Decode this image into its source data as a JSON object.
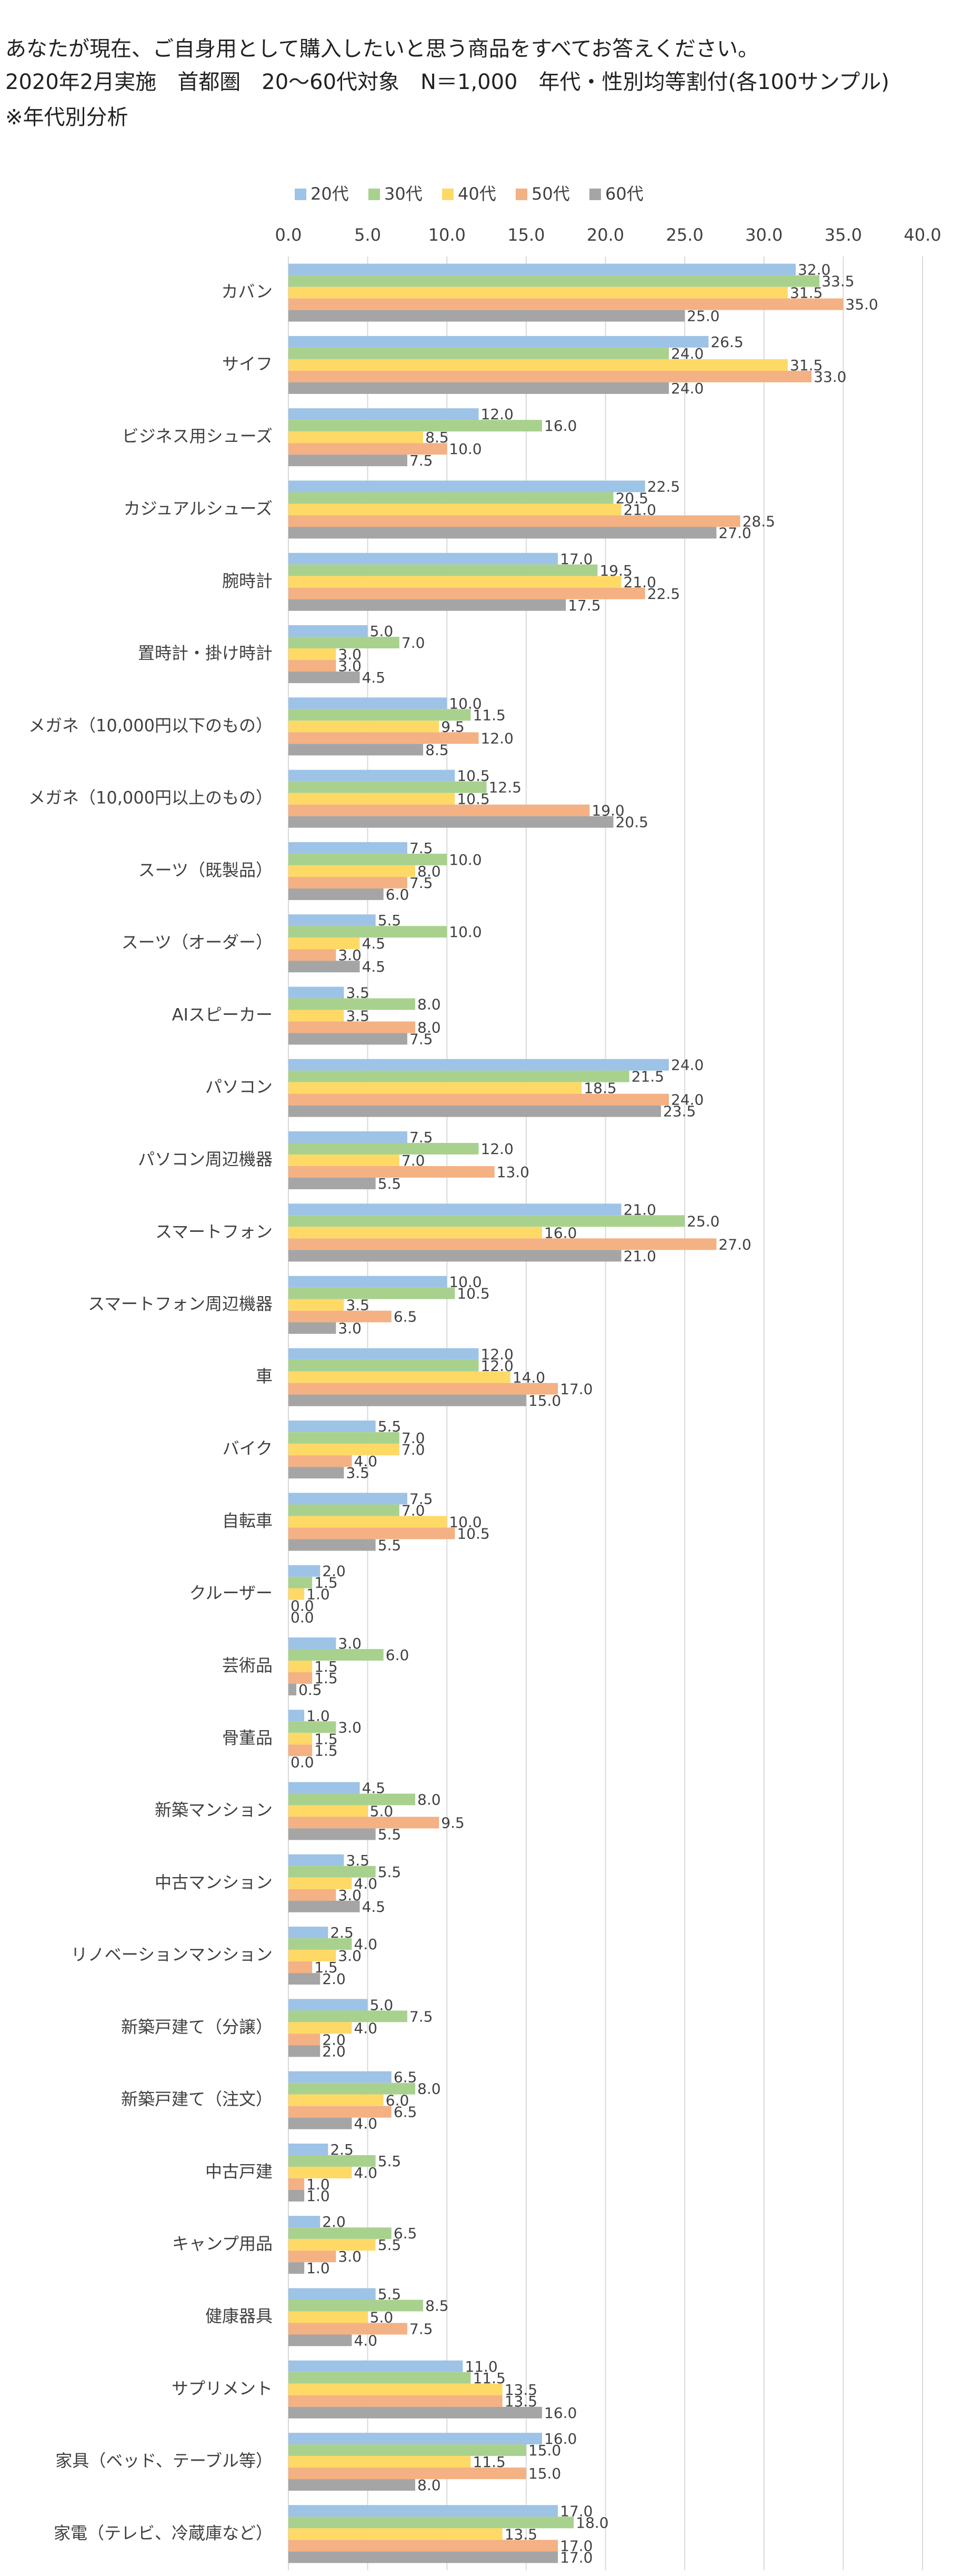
{
  "chart_data": {
    "type": "hbar",
    "title": "あなたが現在、ご自身用として購入したいと思う商品をすべてお答えください。",
    "subtitle": "2020年2月実施　首都圏　20〜60代対象　N＝1,000　年代・性別均等割付(各100サンプル)",
    "note": "※年代別分析",
    "categories": [
      "カバン",
      "サイフ",
      "ビジネス用シューズ",
      "カジュアルシューズ",
      "腕時計",
      "置時計・掛け時計",
      "メガネ（10,000円以下のもの）",
      "メガネ（10,000円以上のもの）",
      "スーツ（既製品）",
      "スーツ（オーダー）",
      "AIスピーカー",
      "パソコン",
      "パソコン周辺機器",
      "スマートフォン",
      "スマートフォン周辺機器",
      "車",
      "バイク",
      "自転車",
      "クルーザー",
      "芸術品",
      "骨董品",
      "新築マンション",
      "中古マンション",
      "リノベーションマンション",
      "新築戸建て（分譲）",
      "新築戸建て（注文）",
      "中古戸建",
      "キャンプ用品",
      "健康器具",
      "サプリメント",
      "家具（ベッド、テーブル等）",
      "家電（テレビ、冷蔵庫など）"
    ],
    "series": [
      {
        "name": "20代",
        "color": "#9dc3e6",
        "values": [
          32,
          26.5,
          12,
          22.5,
          17,
          5,
          10,
          10.5,
          7.5,
          5.5,
          3.5,
          24,
          7.5,
          21,
          10,
          12,
          5.5,
          7.5,
          2,
          3,
          1,
          4.5,
          3.5,
          2.5,
          5,
          6.5,
          2.5,
          2,
          5.5,
          11,
          16,
          17
        ],
        "value_labels": [
          "32.0",
          "26.5",
          "12.0",
          "22.5",
          "17.0",
          "5.0",
          "10.0",
          "10.5",
          "7.5",
          "5.5",
          "3.5",
          "24.0",
          "7.5",
          "21.0",
          "10.0",
          "12.0",
          "5.5",
          "7.5",
          "2.0",
          "3.0",
          "1.0",
          "4.5",
          "3.5",
          "2.5",
          "5.0",
          "6.5",
          "2.5",
          "2.0",
          "5.5",
          "11.0",
          "16.0",
          "17.0"
        ]
      },
      {
        "name": "30代",
        "color": "#a9d18e",
        "values": [
          33.5,
          24,
          16,
          20.5,
          19.5,
          7,
          11.5,
          12.5,
          10,
          10,
          8,
          21.5,
          12,
          25,
          10.5,
          12,
          7,
          7,
          1.5,
          6,
          3,
          8,
          5.5,
          4,
          7.5,
          8,
          5.5,
          6.5,
          8.5,
          11.5,
          15,
          18
        ],
        "value_labels": [
          "33.5",
          "24.0",
          "16.0",
          "20.5",
          "19.5",
          "7.0",
          "11.5",
          "12.5",
          "10.0",
          "10.0",
          "8.0",
          "21.5",
          "12.0",
          "25.0",
          "10.5",
          "12.0",
          "7.0",
          "7.0",
          "1.5",
          "6.0",
          "3.0",
          "8.0",
          "5.5",
          "4.0",
          "7.5",
          "8.0",
          "5.5",
          "6.5",
          "8.5",
          "11.5",
          "15.0",
          "18.0"
        ]
      },
      {
        "name": "40代",
        "color": "#ffd966",
        "values": [
          31.5,
          31.5,
          8.5,
          21,
          21,
          3,
          9.5,
          10.5,
          8,
          4.5,
          3.5,
          18.5,
          7,
          16,
          3.5,
          14,
          7,
          10,
          1,
          1.5,
          1.5,
          5,
          4,
          3,
          4,
          6,
          4,
          5.5,
          5,
          13.5,
          11.5,
          13.5
        ],
        "value_labels": [
          "31.5",
          "31.5",
          "8.5",
          "21.0",
          "21.0",
          "3.0",
          "9.5",
          "10.5",
          "8.0",
          "4.5",
          "3.5",
          "18.5",
          "7.0",
          "16.0",
          "3.5",
          "14.0",
          "7.0",
          "10.0",
          "1.0",
          "1.5",
          "1.5",
          "5.0",
          "4.0",
          "3.0",
          "4.0",
          "6.0",
          "4.0",
          "5.5",
          "5.0",
          "13.5",
          "11.5",
          "13.5"
        ]
      },
      {
        "name": "50代",
        "color": "#f4b183",
        "values": [
          35,
          33,
          10,
          28.5,
          22.5,
          3,
          12,
          19,
          7.5,
          3,
          8,
          24,
          13,
          27,
          6.5,
          17,
          4,
          10.5,
          0,
          1.5,
          1.5,
          9.5,
          3,
          1.5,
          2,
          6.5,
          1,
          3,
          7.5,
          13.5,
          15,
          17
        ],
        "value_labels": [
          "35.0",
          "33.0",
          "10.0",
          "28.5",
          "22.5",
          "3.0",
          "12.0",
          "19.0",
          "7.5",
          "3.0",
          "8.0",
          "24.0",
          "13.0",
          "27.0",
          "6.5",
          "17.0",
          "4.0",
          "10.5",
          "0.0",
          "1.5",
          "1.5",
          "9.5",
          "3.0",
          "1.5",
          "2.0",
          "6.5",
          "1.0",
          "3.0",
          "7.5",
          "13.5",
          "15.0",
          "17.0"
        ]
      },
      {
        "name": "60代",
        "color": "#a5a5a5",
        "values": [
          25,
          24,
          7.5,
          27,
          17.5,
          4.5,
          8.5,
          20.5,
          6,
          4.5,
          7.5,
          23.5,
          5.5,
          21,
          3,
          15,
          3.5,
          5.5,
          0,
          0.5,
          0,
          5.5,
          4.5,
          2,
          2,
          4,
          1,
          1,
          4,
          16,
          8,
          17
        ],
        "value_labels": [
          "25.0",
          "24.0",
          "7.5",
          "27.0",
          "17.5",
          "4.5",
          "8.5",
          "20.5",
          "6.0",
          "4.5",
          "7.5",
          "23.5",
          "5.5",
          "21.0",
          "3.0",
          "15.0",
          "3.5",
          "5.5",
          "0.0",
          "0.5",
          "0.0",
          "5.5",
          "4.5",
          "2.0",
          "2.0",
          "4.0",
          "1.0",
          "1.0",
          "4.0",
          "16.0",
          "8.0",
          "17.0"
        ]
      }
    ],
    "xlim": [
      0,
      40
    ],
    "xticks": [
      {
        "value": 0,
        "label": "0.0"
      },
      {
        "value": 5,
        "label": "5.0"
      },
      {
        "value": 10,
        "label": "10.0"
      },
      {
        "value": 15,
        "label": "15.0"
      },
      {
        "value": 20,
        "label": "20.0"
      },
      {
        "value": 25,
        "label": "25.0"
      },
      {
        "value": 30,
        "label": "30.0"
      },
      {
        "value": 35,
        "label": "35.0"
      },
      {
        "value": 40,
        "label": "40.0"
      }
    ],
    "grid": true,
    "legend": "top"
  }
}
